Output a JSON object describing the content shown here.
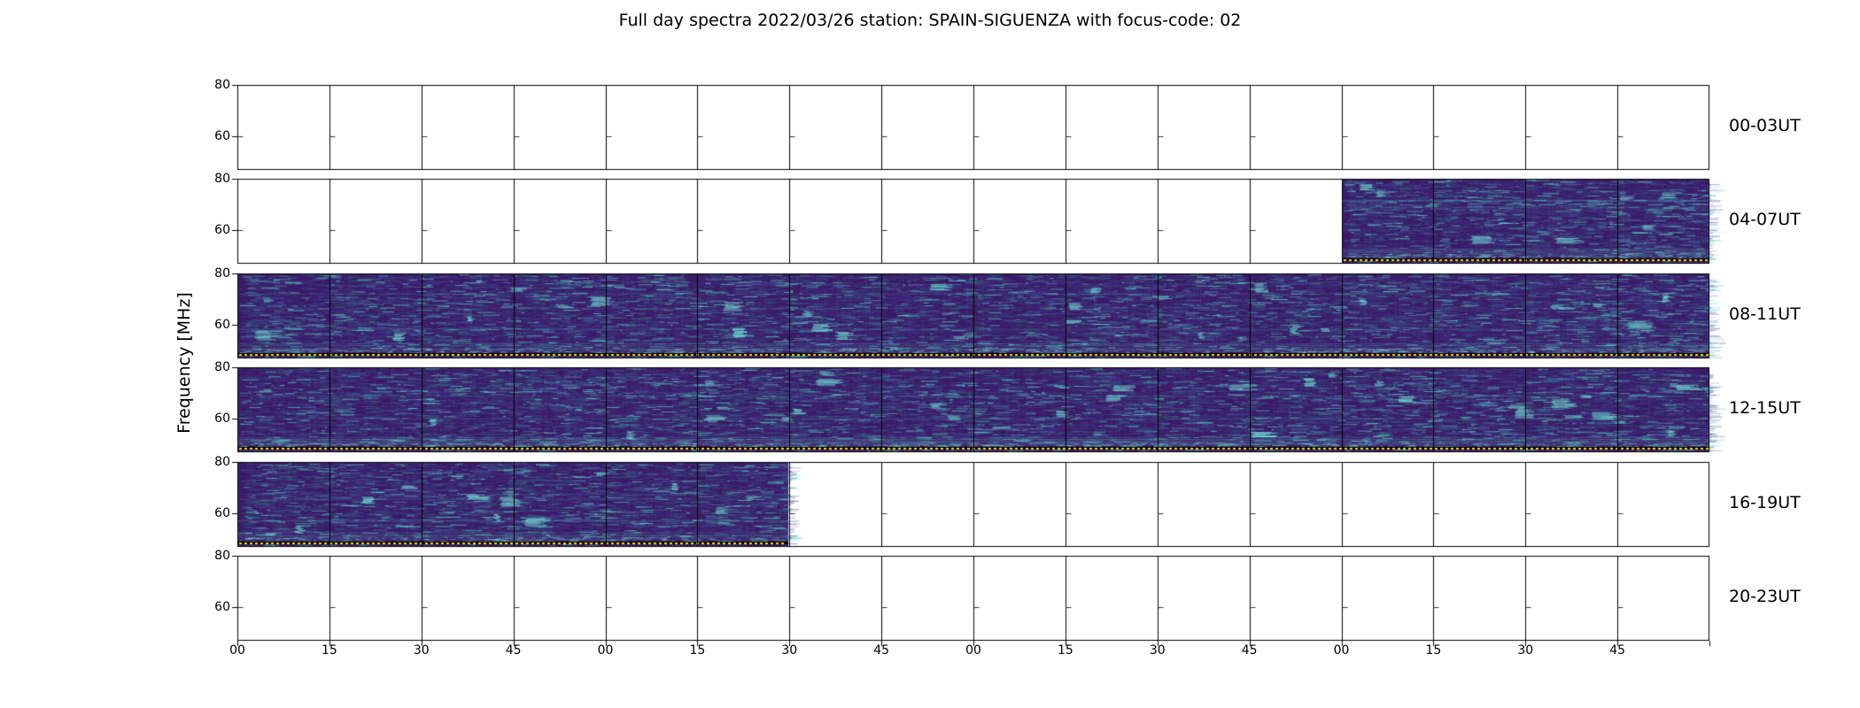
{
  "chart_data": {
    "type": "heatmap",
    "title": "Full day spectra 2022/03/26 station: SPAIN-SIGUENZA with focus-code: 02",
    "station": "SPAIN-SIGUENZA",
    "date": "2022/03/26",
    "focus_code": "02",
    "ylabel": "Frequency [MHz]",
    "ylim": [
      47,
      80
    ],
    "yticks": [
      {
        "value": 80,
        "label": "80"
      },
      {
        "value": 60,
        "label": "60"
      }
    ],
    "xtick_labels": [
      "00",
      "15",
      "30",
      "45",
      "00",
      "15",
      "30",
      "45",
      "00",
      "15",
      "30",
      "45",
      "00",
      "15",
      "30",
      "45"
    ],
    "panels_per_row": 16,
    "minutes_per_panel": 15,
    "grid": "panel-borders",
    "legend": "none",
    "rows": [
      {
        "label": "00-03UT",
        "has_data": false,
        "coverage": []
      },
      {
        "label": "04-07UT",
        "has_data": true,
        "coverage": [
          {
            "start": 0.75,
            "end": 1.0
          }
        ]
      },
      {
        "label": "08-11UT",
        "has_data": true,
        "coverage": [
          {
            "start": 0.0,
            "end": 1.0
          }
        ]
      },
      {
        "label": "12-15UT",
        "has_data": true,
        "coverage": [
          {
            "start": 0.0,
            "end": 1.0
          }
        ]
      },
      {
        "label": "16-19UT",
        "has_data": true,
        "coverage": [
          {
            "start": 0.0,
            "end": 0.375
          }
        ]
      },
      {
        "label": "20-23UT",
        "has_data": false,
        "coverage": []
      }
    ],
    "colors": {
      "background": "#ffffff",
      "spectrogram_base": "#3a1a66",
      "streak_dim": "#46327e",
      "streak_teal": "#2a9d8f",
      "streak_bright": "#64e8d2",
      "marker_dotted_line": "#ffd600",
      "border": "#000000"
    }
  }
}
